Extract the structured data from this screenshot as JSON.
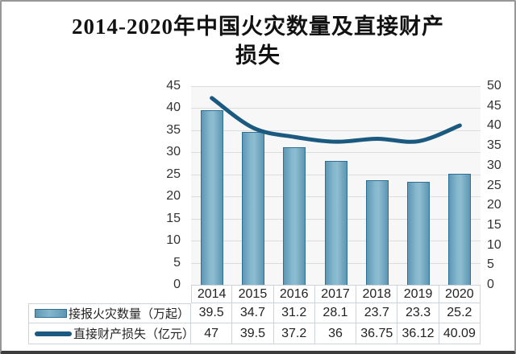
{
  "title": {
    "line1": "2014-2020年中国火灾数量及直接财产",
    "line2": "损失"
  },
  "chart_data": {
    "type": "bar+line combo, dual y-axes, legend rendered as bottom data table",
    "categories": [
      "2014",
      "2015",
      "2016",
      "2017",
      "2018",
      "2019",
      "2020"
    ],
    "series": [
      {
        "name": "接报火灾数量（万起）",
        "type": "bar",
        "axis": "left",
        "values": [
          39.5,
          34.7,
          31.2,
          28.1,
          23.7,
          23.3,
          25.2
        ],
        "display_values": [
          "39.5",
          "34.7",
          "31.2",
          "28.1",
          "23.7",
          "23.3",
          "25.2"
        ]
      },
      {
        "name": "直接财产损失（亿元）",
        "type": "line",
        "axis": "right",
        "values": [
          47,
          39.5,
          37.2,
          36,
          36.75,
          36.12,
          40.09
        ],
        "display_values": [
          "47",
          "39.5",
          "37.2",
          "36",
          "36.75",
          "36.12",
          "40.09"
        ]
      }
    ],
    "left_axis": {
      "min": 0,
      "max": 45,
      "step": 5,
      "ticks": [
        45,
        40,
        35,
        30,
        25,
        20,
        15,
        10,
        5,
        0
      ]
    },
    "right_axis": {
      "min": 0,
      "max": 50,
      "step": 5,
      "ticks": [
        50,
        45,
        40,
        35,
        30,
        25,
        20,
        15,
        10,
        5,
        0
      ]
    },
    "grid": true,
    "legend_position": "bottom-table"
  },
  "colors": {
    "bar_fill": "#85b7cd",
    "bar_border": "#2e6f93",
    "line": "#1b5a80",
    "gridline": "#dcdcdc",
    "plot_background": "#f7f7f7",
    "table_border": "#ccd3d9",
    "axis_text": "#333333",
    "title_text": "#121212"
  }
}
